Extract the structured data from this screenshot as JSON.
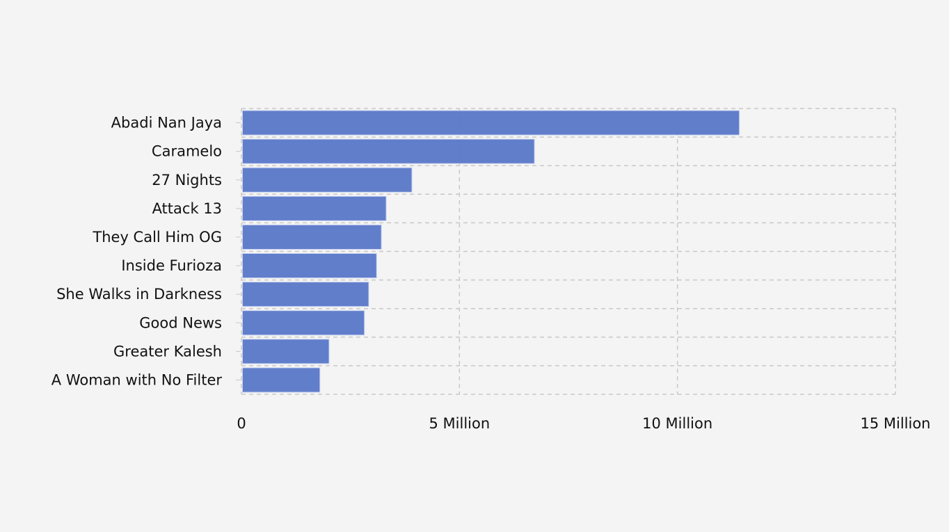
{
  "chart_data": {
    "type": "bar",
    "orientation": "horizontal",
    "title": "",
    "xlabel": "",
    "ylabel": "",
    "categories": [
      "Abadi Nan Jaya",
      "Caramelo",
      "27 Nights",
      "Attack 13",
      "They Call Him OG",
      "Inside Furioza",
      "She Walks in Darkness",
      "Good News",
      "Greater Kalesh",
      "A Woman with No Filter"
    ],
    "values": [
      11420000,
      6720000,
      3910000,
      3320000,
      3210000,
      3100000,
      2920000,
      2820000,
      2010000,
      1800000
    ],
    "xlim": [
      0,
      15000000
    ],
    "x_ticks": [
      0,
      5000000,
      10000000,
      15000000
    ],
    "x_tick_labels": [
      "0",
      "5 Million",
      "10 Million",
      "15 Million"
    ],
    "grid": true,
    "legend": "none",
    "colors": {
      "bar": "#5b79c9",
      "bar_edge": "#c8d2f0",
      "grid": "#c8c8c8",
      "background": "#f4f4f4",
      "text": "#111111"
    }
  }
}
